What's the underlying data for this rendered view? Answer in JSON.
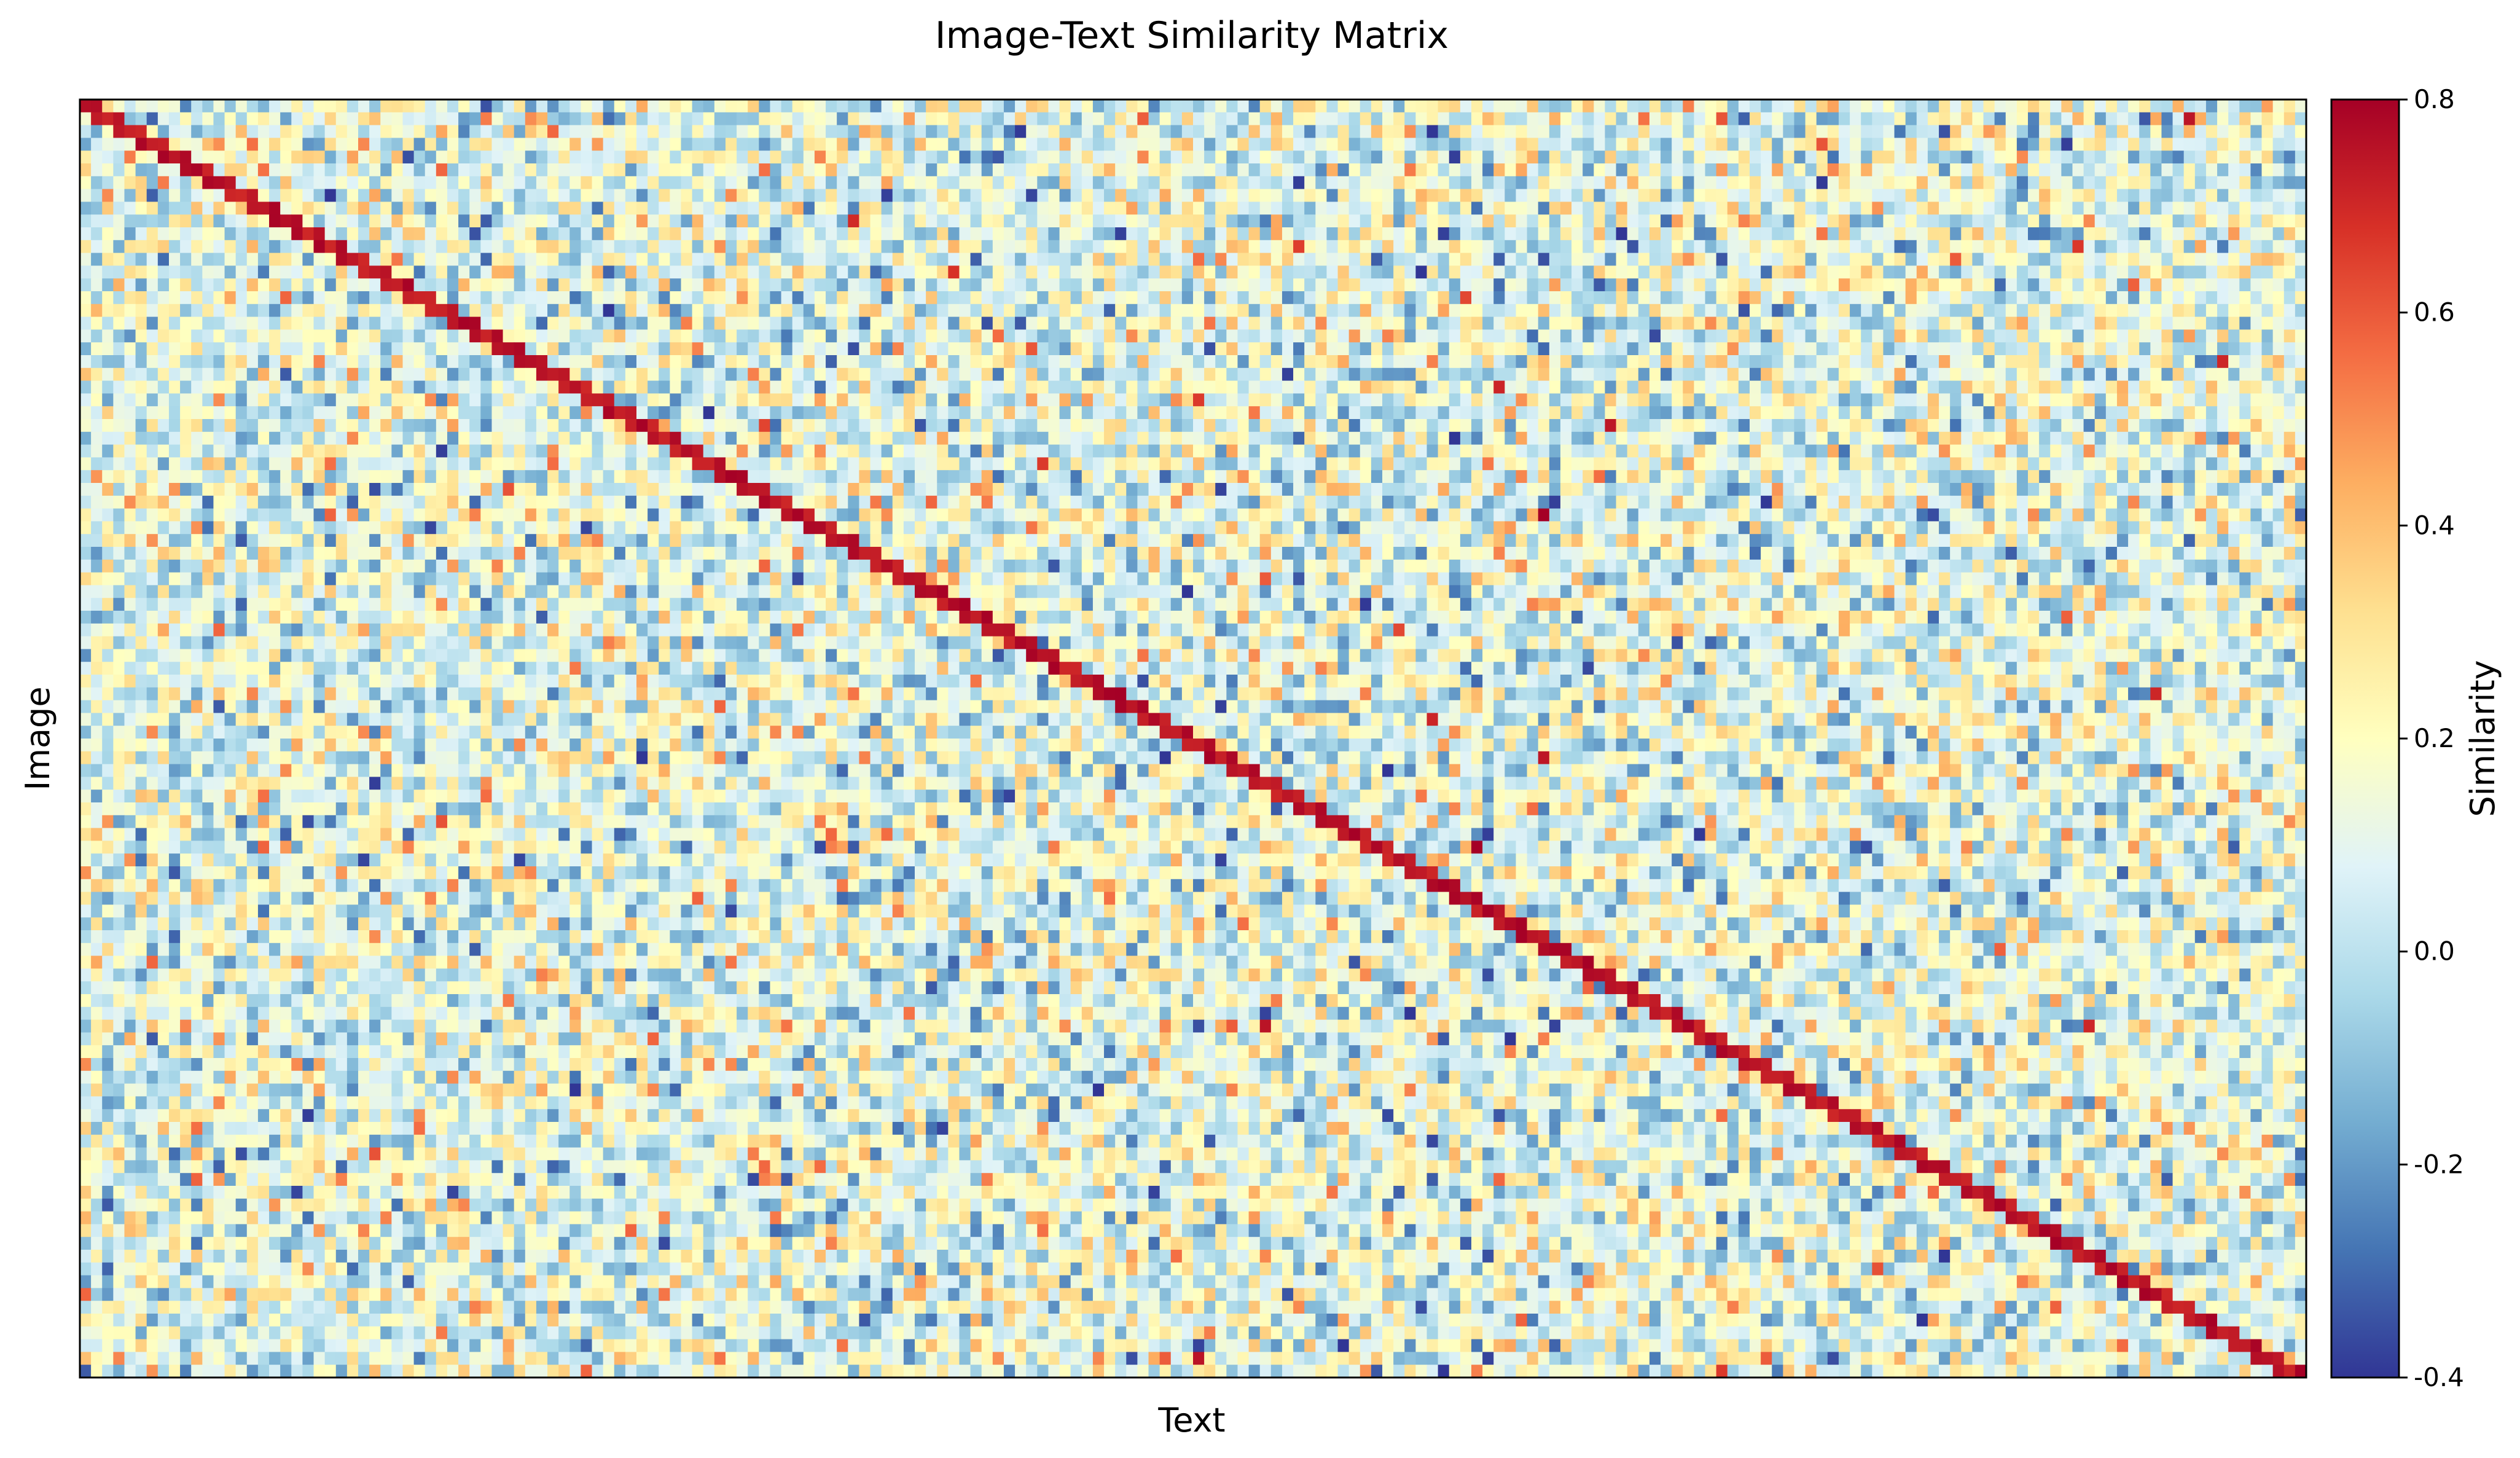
{
  "chart_data": {
    "type": "heatmap",
    "title": "Image-Text Similarity Matrix",
    "xlabel": "Text",
    "ylabel": "Image",
    "colorbar": {
      "label": "Similarity",
      "range": [
        -0.4,
        0.8
      ],
      "ticks": [
        -0.4,
        -0.2,
        0.0,
        0.2,
        0.4,
        0.6,
        0.8
      ],
      "tick_labels": [
        "-0.4",
        "-0.2",
        "0.0",
        "0.2",
        "0.4",
        "0.6",
        "0.8"
      ],
      "colormap": "RdYlBu_r",
      "colors": [
        "#313695",
        "#4575b4",
        "#74add1",
        "#abd9e9",
        "#e0f3f8",
        "#ffffbf",
        "#fee090",
        "#fdae61",
        "#f46d43",
        "#d73027",
        "#a50026"
      ]
    },
    "rows": 100,
    "cols": 200,
    "diagonal_similarity": 0.75,
    "off_diagonal_mean": 0.1,
    "x_ticks_shown": false,
    "y_ticks_shown": false
  }
}
